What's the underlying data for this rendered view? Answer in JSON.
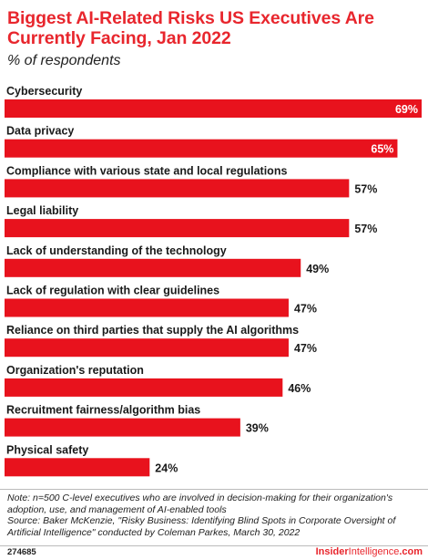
{
  "header": {
    "title": "Biggest AI-Related Risks US Executives Are Currently Facing, Jan 2022",
    "subtitle": "% of respondents"
  },
  "colors": {
    "accent": "#e8262d",
    "bar": "#e8121d",
    "text": "#222222"
  },
  "chart_data": {
    "type": "bar",
    "orientation": "horizontal",
    "title": "Biggest AI-Related Risks US Executives Are Currently Facing, Jan 2022",
    "subtitle": "% of respondents",
    "categories": [
      "Cybersecurity",
      "Data privacy",
      "Compliance with various state and local regulations",
      "Legal liability",
      "Lack of understanding of the technology",
      "Lack of regulation with clear guidelines",
      "Reliance on third parties that supply the AI algorithms",
      "Organization's reputation",
      "Recruitment fairness/algorithm bias",
      "Physical safety"
    ],
    "values": [
      69,
      65,
      57,
      57,
      49,
      47,
      47,
      46,
      39,
      24
    ],
    "value_labels": [
      "69%",
      "65%",
      "57%",
      "57%",
      "49%",
      "47%",
      "47%",
      "46%",
      "39%",
      "24%"
    ],
    "xlim": [
      0,
      69
    ],
    "grid": false,
    "legend": "none"
  },
  "footer": {
    "note": "Note: n=500 C-level executives who are involved in decision-making for their organization's adoption, use, and management of AI-enabled tools",
    "source": "Source: Baker McKenzie, \"Risky Business: Identifying Blind Spots in Corporate Oversight of Artificial Intelligence\" conducted by Coleman Parkes, March 30, 2022",
    "chart_id": "274685",
    "brand_bold": "Insider",
    "brand_thin": "Intelligence",
    "brand_domain": ".com"
  }
}
